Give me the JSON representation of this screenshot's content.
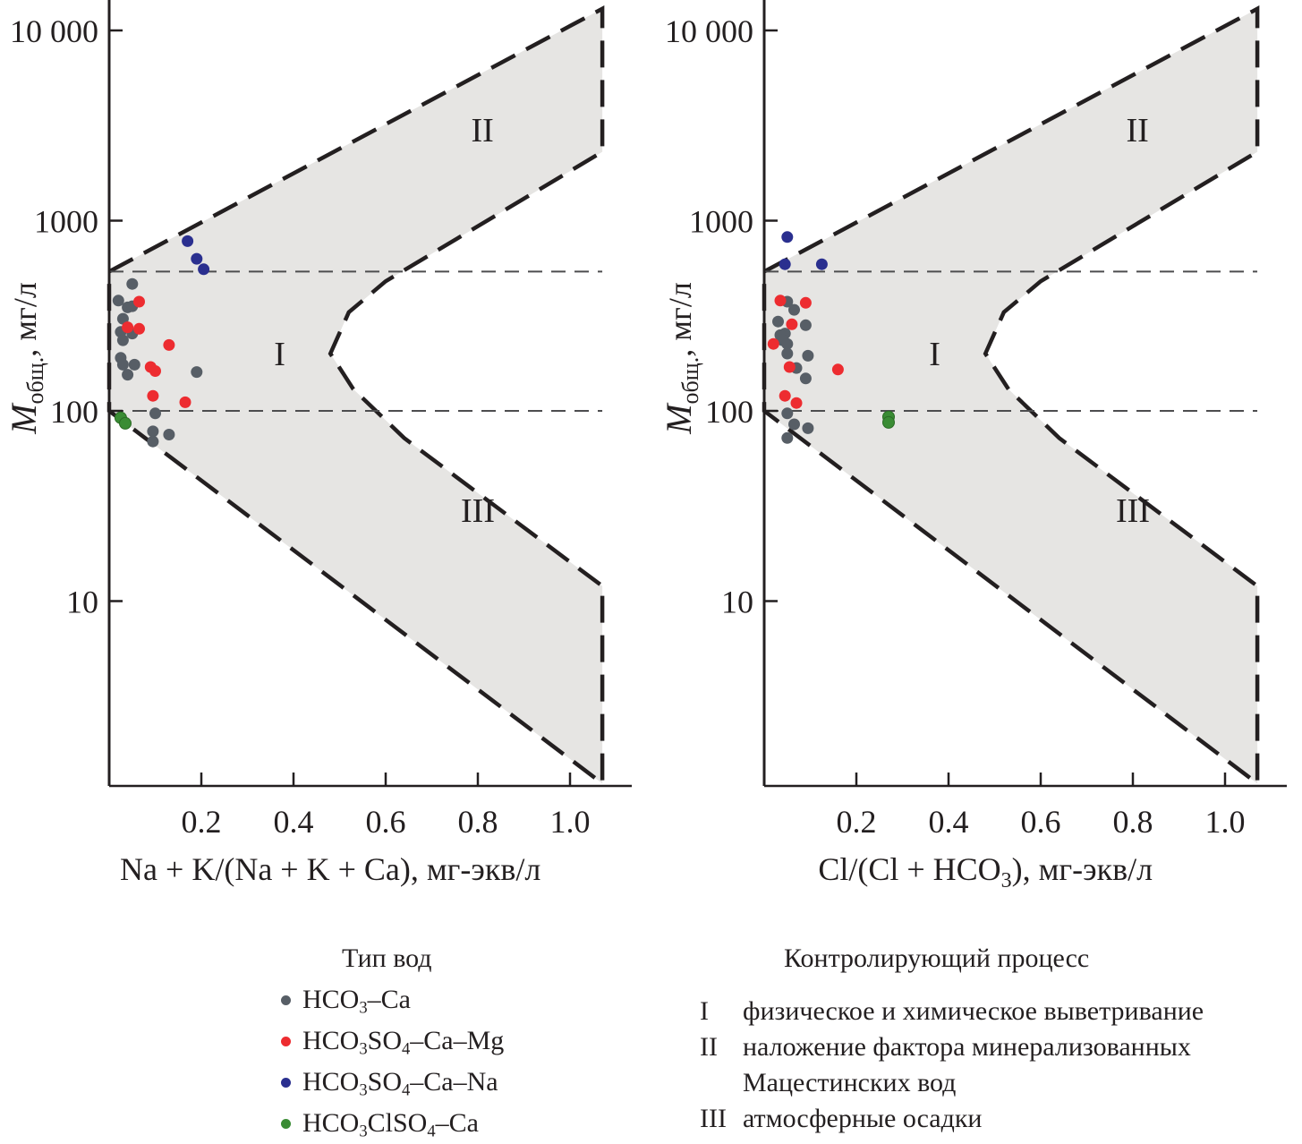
{
  "chart_data": [
    {
      "type": "scatter",
      "panel": "left",
      "xlabel": "Na + K/(Na + K + Ca), мг-экв/л",
      "ylabel_main": "M",
      "ylabel_sub": "общ.",
      "ylabel_unit": ", мг/л",
      "xlim": [
        0,
        1.14
      ],
      "ylim": [
        1,
        10000
      ],
      "yscale": "log",
      "x_ticks": [
        0.2,
        0.4,
        0.6,
        0.8,
        1.0
      ],
      "x_tick_labels": [
        "0.2",
        "0.4",
        "0.6",
        "0.8",
        "1.0"
      ],
      "y_ticks": [
        10,
        100,
        1000,
        10000
      ],
      "y_tick_labels": [
        "10",
        "100",
        "1000",
        "10 000"
      ],
      "reference_lines_y": [
        100,
        540
      ],
      "regions": [
        {
          "label": "I",
          "x": 0.37,
          "y": 200
        },
        {
          "label": "II",
          "x": 0.81,
          "y": 3000
        },
        {
          "label": "III",
          "x": 0.8,
          "y": 30
        }
      ],
      "series": [
        {
          "name": "HCO3–Ca",
          "color": "#575e66",
          "points": [
            [
              0.05,
              465
            ],
            [
              0.02,
              380
            ],
            [
              0.04,
              350
            ],
            [
              0.05,
              355
            ],
            [
              0.03,
              305
            ],
            [
              0.025,
              260
            ],
            [
              0.05,
              255
            ],
            [
              0.03,
              235
            ],
            [
              0.025,
              190
            ],
            [
              0.03,
              175
            ],
            [
              0.055,
              175
            ],
            [
              0.04,
              155
            ],
            [
              0.19,
              160
            ],
            [
              0.1,
              97
            ],
            [
              0.095,
              78
            ],
            [
              0.13,
              75
            ],
            [
              0.095,
              69
            ]
          ]
        },
        {
          "name": "HCO3SO4–Ca–Mg",
          "color": "#ed2c30",
          "points": [
            [
              0.065,
              375
            ],
            [
              0.04,
              275
            ],
            [
              0.065,
              270
            ],
            [
              0.13,
              222
            ],
            [
              0.09,
              170
            ],
            [
              0.1,
              162
            ],
            [
              0.095,
              120
            ],
            [
              0.165,
              111
            ]
          ]
        },
        {
          "name": "HCO3SO4–Ca–Na",
          "color": "#2a2f8f",
          "points": [
            [
              0.17,
              780
            ],
            [
              0.19,
              630
            ],
            [
              0.205,
              555
            ]
          ]
        },
        {
          "name": "HCO3ClSO4–Ca",
          "color": "#3a8c34",
          "points": [
            [
              0.025,
              92
            ],
            [
              0.035,
              86
            ]
          ]
        }
      ]
    },
    {
      "type": "scatter",
      "panel": "right",
      "xlabel": "Cl/(Cl + HCO3), мг-экв/л",
      "xlabel_parts": {
        "pre": "Cl/(Cl + HCO",
        "sub": "3",
        "post": "), мг-экв/л"
      },
      "ylabel_main": "M",
      "ylabel_sub": "общ.",
      "ylabel_unit": ", мг/л",
      "xlim": [
        0,
        1.14
      ],
      "ylim": [
        1,
        10000
      ],
      "yscale": "log",
      "x_ticks": [
        0.2,
        0.4,
        0.6,
        0.8,
        1.0
      ],
      "x_tick_labels": [
        "0.2",
        "0.4",
        "0.6",
        "0.8",
        "1.0"
      ],
      "y_ticks": [
        10,
        100,
        1000,
        10000
      ],
      "y_tick_labels": [
        "10",
        "100",
        "1000",
        "10 000"
      ],
      "reference_lines_y": [
        100,
        540
      ],
      "regions": [
        {
          "label": "I",
          "x": 0.37,
          "y": 200
        },
        {
          "label": "II",
          "x": 0.81,
          "y": 3000
        },
        {
          "label": "III",
          "x": 0.8,
          "y": 30
        }
      ],
      "series": [
        {
          "name": "HCO3–Ca",
          "color": "#575e66",
          "points": [
            [
              0.05,
              375
            ],
            [
              0.065,
              340
            ],
            [
              0.03,
              295
            ],
            [
              0.09,
              282
            ],
            [
              0.045,
              255
            ],
            [
              0.035,
              250
            ],
            [
              0.04,
              235
            ],
            [
              0.05,
              225
            ],
            [
              0.05,
              200
            ],
            [
              0.095,
              195
            ],
            [
              0.07,
              168
            ],
            [
              0.09,
              148
            ],
            [
              0.05,
              97
            ],
            [
              0.065,
              85
            ],
            [
              0.095,
              81
            ],
            [
              0.05,
              72
            ]
          ]
        },
        {
          "name": "HCO3SO4–Ca–Mg",
          "color": "#ed2c30",
          "points": [
            [
              0.035,
              380
            ],
            [
              0.09,
              370
            ],
            [
              0.06,
              285
            ],
            [
              0.02,
              225
            ],
            [
              0.055,
              170
            ],
            [
              0.16,
              165
            ],
            [
              0.045,
              120
            ],
            [
              0.07,
              110
            ]
          ]
        },
        {
          "name": "HCO3SO4–Ca–Na",
          "color": "#2a2f8f",
          "points": [
            [
              0.05,
              820
            ],
            [
              0.045,
              590
            ],
            [
              0.125,
              590
            ]
          ]
        },
        {
          "name": "HCO3ClSO4–Ca",
          "color": "#3a8c34",
          "points": [
            [
              0.27,
              93
            ],
            [
              0.27,
              87
            ]
          ]
        }
      ]
    }
  ],
  "legend_types": {
    "title": "Тип вод",
    "items": [
      {
        "parts": [
          "HCO",
          "3",
          "–Ca"
        ],
        "color": "#575e66"
      },
      {
        "parts": [
          "HCO",
          "3",
          "SO",
          "4",
          "–Ca–Mg"
        ],
        "color": "#ed2c30"
      },
      {
        "parts": [
          "HCO",
          "3",
          "SO",
          "4",
          "–Ca–Na"
        ],
        "color": "#2a2f8f"
      },
      {
        "parts": [
          "HCO",
          "3",
          "ClSO",
          "4",
          "–Ca"
        ],
        "color": "#3a8c34"
      }
    ]
  },
  "legend_process": {
    "title": "Контролирующий процесс",
    "items": [
      {
        "num": "I",
        "text": "физическое и химическое выветривание"
      },
      {
        "num": "II",
        "text": "наложение фактора минерализованных"
      },
      {
        "num": "",
        "text": "Мацестинских вод"
      },
      {
        "num": "III",
        "text": "атмосферные осадки"
      }
    ]
  }
}
